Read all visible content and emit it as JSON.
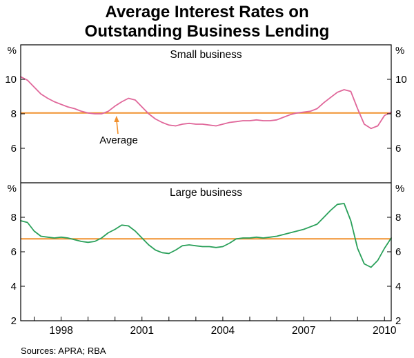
{
  "title": {
    "line1": "Average Interest Rates on",
    "line2": "Outstanding Business Lending"
  },
  "sources": "Sources: APRA; RBA",
  "chart_data": {
    "type": "line",
    "title": "Average Interest Rates on Outstanding Business Lending",
    "xlim": [
      1996.5,
      2010.25
    ],
    "x_ticks": [
      "1998",
      "2001",
      "2004",
      "2007",
      "2010"
    ],
    "x_tick_values": [
      1998,
      2001,
      2004,
      2007,
      2010
    ],
    "grid": false,
    "colors": {
      "average": "#f1902d",
      "small_business": "#e0679a",
      "large_business": "#2aa05a"
    },
    "panels": [
      {
        "label": "Small business",
        "unit": "%",
        "ylim": [
          4,
          12
        ],
        "yticks": [
          6,
          8,
          10
        ],
        "average": 8.05,
        "average_label": "Average",
        "series": {
          "name": "Small business average interest rate",
          "color": "#e0679a",
          "x": [
            1996.5,
            1996.75,
            1997.0,
            1997.25,
            1997.5,
            1997.75,
            1998.0,
            1998.25,
            1998.5,
            1998.75,
            1999.0,
            1999.25,
            1999.5,
            1999.75,
            2000.0,
            2000.25,
            2000.5,
            2000.75,
            2001.0,
            2001.25,
            2001.5,
            2001.75,
            2002.0,
            2002.25,
            2002.5,
            2002.75,
            2003.0,
            2003.25,
            2003.5,
            2003.75,
            2004.0,
            2004.25,
            2004.5,
            2004.75,
            2005.0,
            2005.25,
            2005.5,
            2005.75,
            2006.0,
            2006.25,
            2006.5,
            2006.75,
            2007.0,
            2007.25,
            2007.5,
            2007.75,
            2008.0,
            2008.25,
            2008.5,
            2008.75,
            2009.0,
            2009.25,
            2009.5,
            2009.75,
            2010.0,
            2010.25
          ],
          "values": [
            10.15,
            9.95,
            9.55,
            9.15,
            8.9,
            8.7,
            8.55,
            8.4,
            8.3,
            8.15,
            8.05,
            8.0,
            8.0,
            8.15,
            8.45,
            8.7,
            8.9,
            8.8,
            8.4,
            8.0,
            7.7,
            7.5,
            7.35,
            7.3,
            7.4,
            7.45,
            7.4,
            7.4,
            7.35,
            7.3,
            7.4,
            7.5,
            7.55,
            7.6,
            7.6,
            7.65,
            7.6,
            7.6,
            7.65,
            7.8,
            7.95,
            8.05,
            8.1,
            8.15,
            8.3,
            8.65,
            8.95,
            9.25,
            9.4,
            9.3,
            8.3,
            7.4,
            7.15,
            7.3,
            7.9,
            8.1
          ]
        }
      },
      {
        "label": "Large business",
        "unit": "%",
        "ylim": [
          2,
          10
        ],
        "yticks": [
          2,
          4,
          6,
          8
        ],
        "average": 6.75,
        "series": {
          "name": "Large business average interest rate",
          "color": "#2aa05a",
          "x": [
            1996.5,
            1996.75,
            1997.0,
            1997.25,
            1997.5,
            1997.75,
            1998.0,
            1998.25,
            1998.5,
            1998.75,
            1999.0,
            1999.25,
            1999.5,
            1999.75,
            2000.0,
            2000.25,
            2000.5,
            2000.75,
            2001.0,
            2001.25,
            2001.5,
            2001.75,
            2002.0,
            2002.25,
            2002.5,
            2002.75,
            2003.0,
            2003.25,
            2003.5,
            2003.75,
            2004.0,
            2004.25,
            2004.5,
            2004.75,
            2005.0,
            2005.25,
            2005.5,
            2005.75,
            2006.0,
            2006.25,
            2006.5,
            2006.75,
            2007.0,
            2007.25,
            2007.5,
            2007.75,
            2008.0,
            2008.25,
            2008.5,
            2008.75,
            2009.0,
            2009.25,
            2009.5,
            2009.75,
            2010.0,
            2010.25
          ],
          "values": [
            7.8,
            7.7,
            7.2,
            6.9,
            6.85,
            6.8,
            6.85,
            6.8,
            6.7,
            6.6,
            6.55,
            6.6,
            6.8,
            7.1,
            7.3,
            7.55,
            7.5,
            7.2,
            6.8,
            6.4,
            6.1,
            5.95,
            5.9,
            6.1,
            6.35,
            6.4,
            6.35,
            6.3,
            6.3,
            6.25,
            6.3,
            6.5,
            6.75,
            6.8,
            6.8,
            6.85,
            6.8,
            6.85,
            6.9,
            7.0,
            7.1,
            7.2,
            7.3,
            7.45,
            7.6,
            8.0,
            8.4,
            8.75,
            8.8,
            7.8,
            6.2,
            5.3,
            5.1,
            5.5,
            6.2,
            6.8
          ]
        }
      }
    ]
  }
}
